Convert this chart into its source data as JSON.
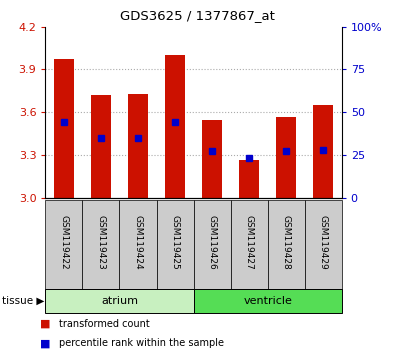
{
  "title": "GDS3625 / 1377867_at",
  "samples": [
    "GSM119422",
    "GSM119423",
    "GSM119424",
    "GSM119425",
    "GSM119426",
    "GSM119427",
    "GSM119428",
    "GSM119429"
  ],
  "bar_tops": [
    3.97,
    3.72,
    3.73,
    4.0,
    3.55,
    3.27,
    3.57,
    3.65
  ],
  "bar_base": 3.0,
  "blue_markers": [
    3.53,
    3.42,
    3.42,
    3.53,
    3.33,
    3.28,
    3.33,
    3.34
  ],
  "ylim": [
    3.0,
    4.2
  ],
  "yticks_left": [
    3.0,
    3.3,
    3.6,
    3.9,
    4.2
  ],
  "yticks_right": [
    0,
    25,
    50,
    75,
    100
  ],
  "bar_color": "#cc1100",
  "blue_color": "#0000cc",
  "tissue_groups": [
    {
      "label": "atrium",
      "start": 0,
      "end": 4,
      "color": "#c8f0c0"
    },
    {
      "label": "ventricle",
      "start": 4,
      "end": 8,
      "color": "#55dd55"
    }
  ],
  "legend_items": [
    {
      "label": "transformed count",
      "color": "#cc1100"
    },
    {
      "label": "percentile rank within the sample",
      "color": "#0000cc"
    }
  ],
  "bar_width": 0.55,
  "grid_color": "#aaaaaa",
  "ylabel_left_color": "#cc1100",
  "ylabel_right_color": "#0000cc",
  "tick_label_bg": "#cccccc",
  "marker_size": 4
}
